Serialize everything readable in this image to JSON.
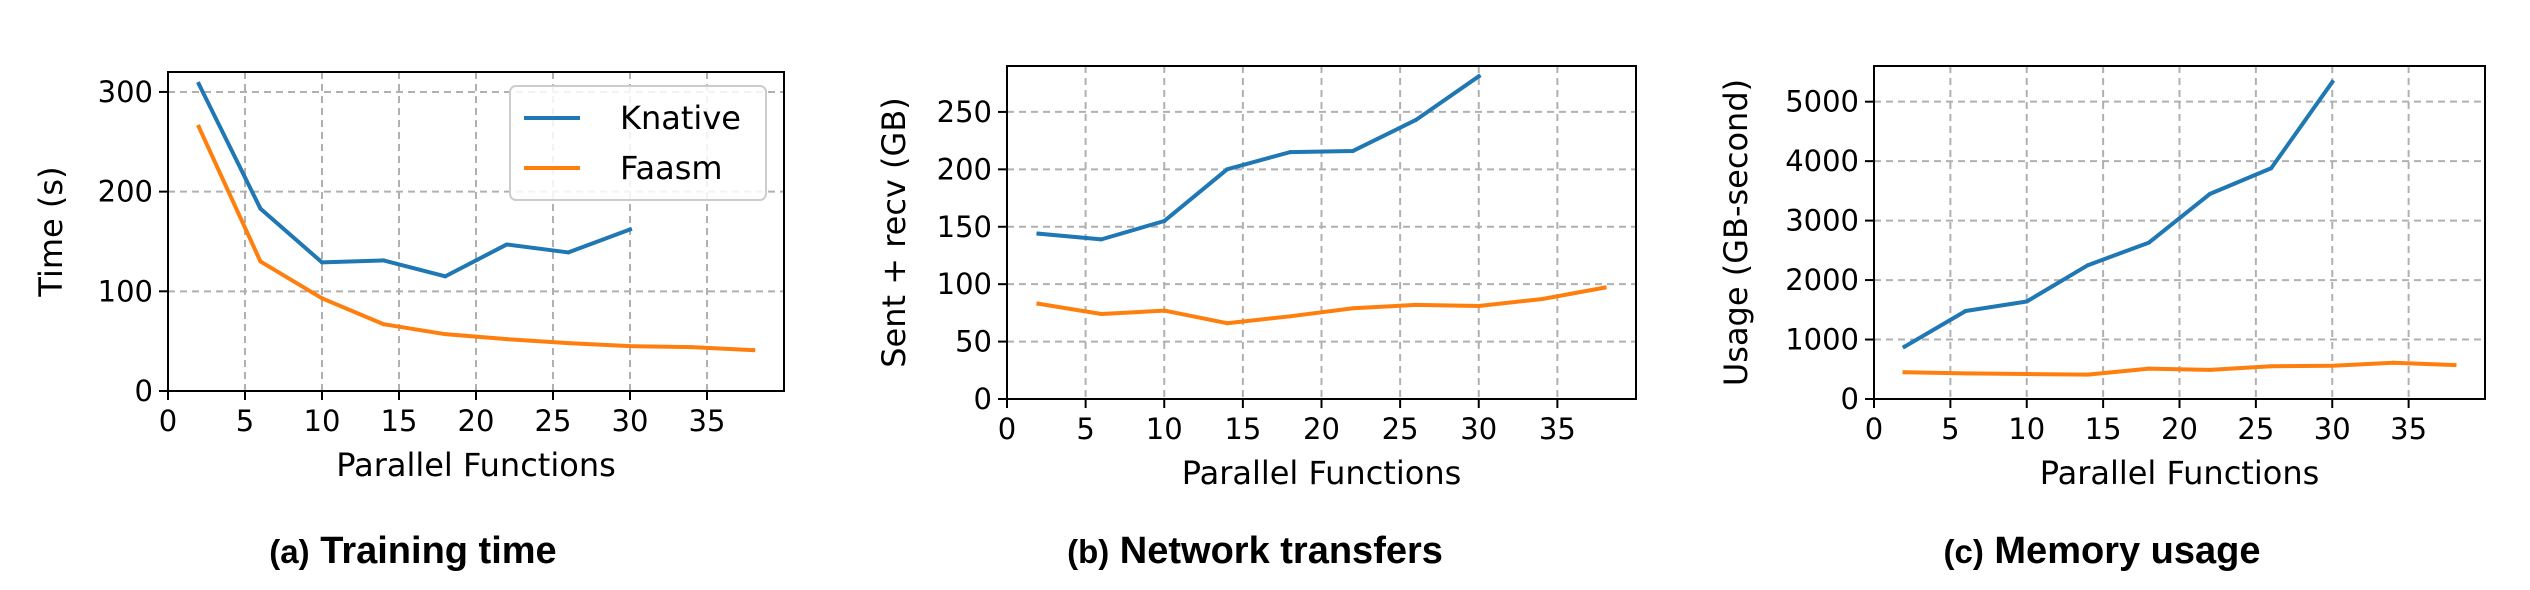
{
  "colors": {
    "knative": "#1f77b4",
    "faasm": "#ff7f0e",
    "grid": "#b0b0b0"
  },
  "legend": {
    "placement": "top-right",
    "entries": [
      "Knative",
      "Faasm"
    ]
  },
  "captions": [
    {
      "prefix": "(a)",
      "title": "Training time"
    },
    {
      "prefix": "(b)",
      "title": "Network transfers"
    },
    {
      "prefix": "(c)",
      "title": "Memory usage"
    }
  ],
  "chart_data": [
    {
      "type": "line",
      "xlabel": "Parallel Functions",
      "ylabel": "Time (s)",
      "xlim": [
        0,
        40
      ],
      "ylim": [
        0,
        320
      ],
      "xticks": [
        0,
        5,
        10,
        15,
        20,
        25,
        30,
        35
      ],
      "yticks": [
        0,
        100,
        200,
        300
      ],
      "grid": true,
      "legend": "top-right",
      "series": [
        {
          "name": "Knative",
          "x": [
            2,
            6,
            10,
            14,
            18,
            22,
            26,
            30
          ],
          "values": [
            308,
            183,
            129,
            131,
            115,
            147,
            139,
            162
          ]
        },
        {
          "name": "Faasm",
          "x": [
            2,
            6,
            10,
            14,
            18,
            22,
            26,
            30,
            34,
            38
          ],
          "values": [
            265,
            130,
            93,
            67,
            57,
            52,
            48,
            45,
            44,
            41
          ]
        }
      ]
    },
    {
      "type": "line",
      "xlabel": "Parallel Functions",
      "ylabel": "Sent + recv (GB)",
      "xlim": [
        0,
        40
      ],
      "ylim": [
        0,
        290
      ],
      "xticks": [
        0,
        5,
        10,
        15,
        20,
        25,
        30,
        35
      ],
      "yticks": [
        0,
        50,
        100,
        150,
        200,
        250
      ],
      "grid": true,
      "series": [
        {
          "name": "Knative",
          "x": [
            2,
            6,
            10,
            14,
            18,
            22,
            26,
            30
          ],
          "values": [
            144,
            139,
            155,
            200,
            215,
            216,
            243,
            281
          ]
        },
        {
          "name": "Faasm",
          "x": [
            2,
            6,
            10,
            14,
            18,
            22,
            26,
            30,
            34,
            38
          ],
          "values": [
            83,
            74,
            77,
            66,
            72,
            79,
            82,
            81,
            87,
            97
          ]
        }
      ]
    },
    {
      "type": "line",
      "xlabel": "Parallel Functions",
      "ylabel": "Usage (GB-second)",
      "xlim": [
        0,
        40
      ],
      "ylim": [
        0,
        5600
      ],
      "xticks": [
        0,
        5,
        10,
        15,
        20,
        25,
        30,
        35
      ],
      "yticks": [
        0,
        1000,
        2000,
        3000,
        4000,
        5000
      ],
      "grid": true,
      "series": [
        {
          "name": "Knative",
          "x": [
            2,
            6,
            10,
            14,
            18,
            22,
            26,
            30
          ],
          "values": [
            880,
            1480,
            1640,
            2250,
            2630,
            3450,
            3880,
            5330
          ]
        },
        {
          "name": "Faasm",
          "x": [
            2,
            6,
            10,
            14,
            18,
            22,
            26,
            30,
            34,
            38
          ],
          "values": [
            450,
            430,
            420,
            410,
            510,
            490,
            550,
            560,
            610,
            570
          ]
        }
      ]
    }
  ]
}
